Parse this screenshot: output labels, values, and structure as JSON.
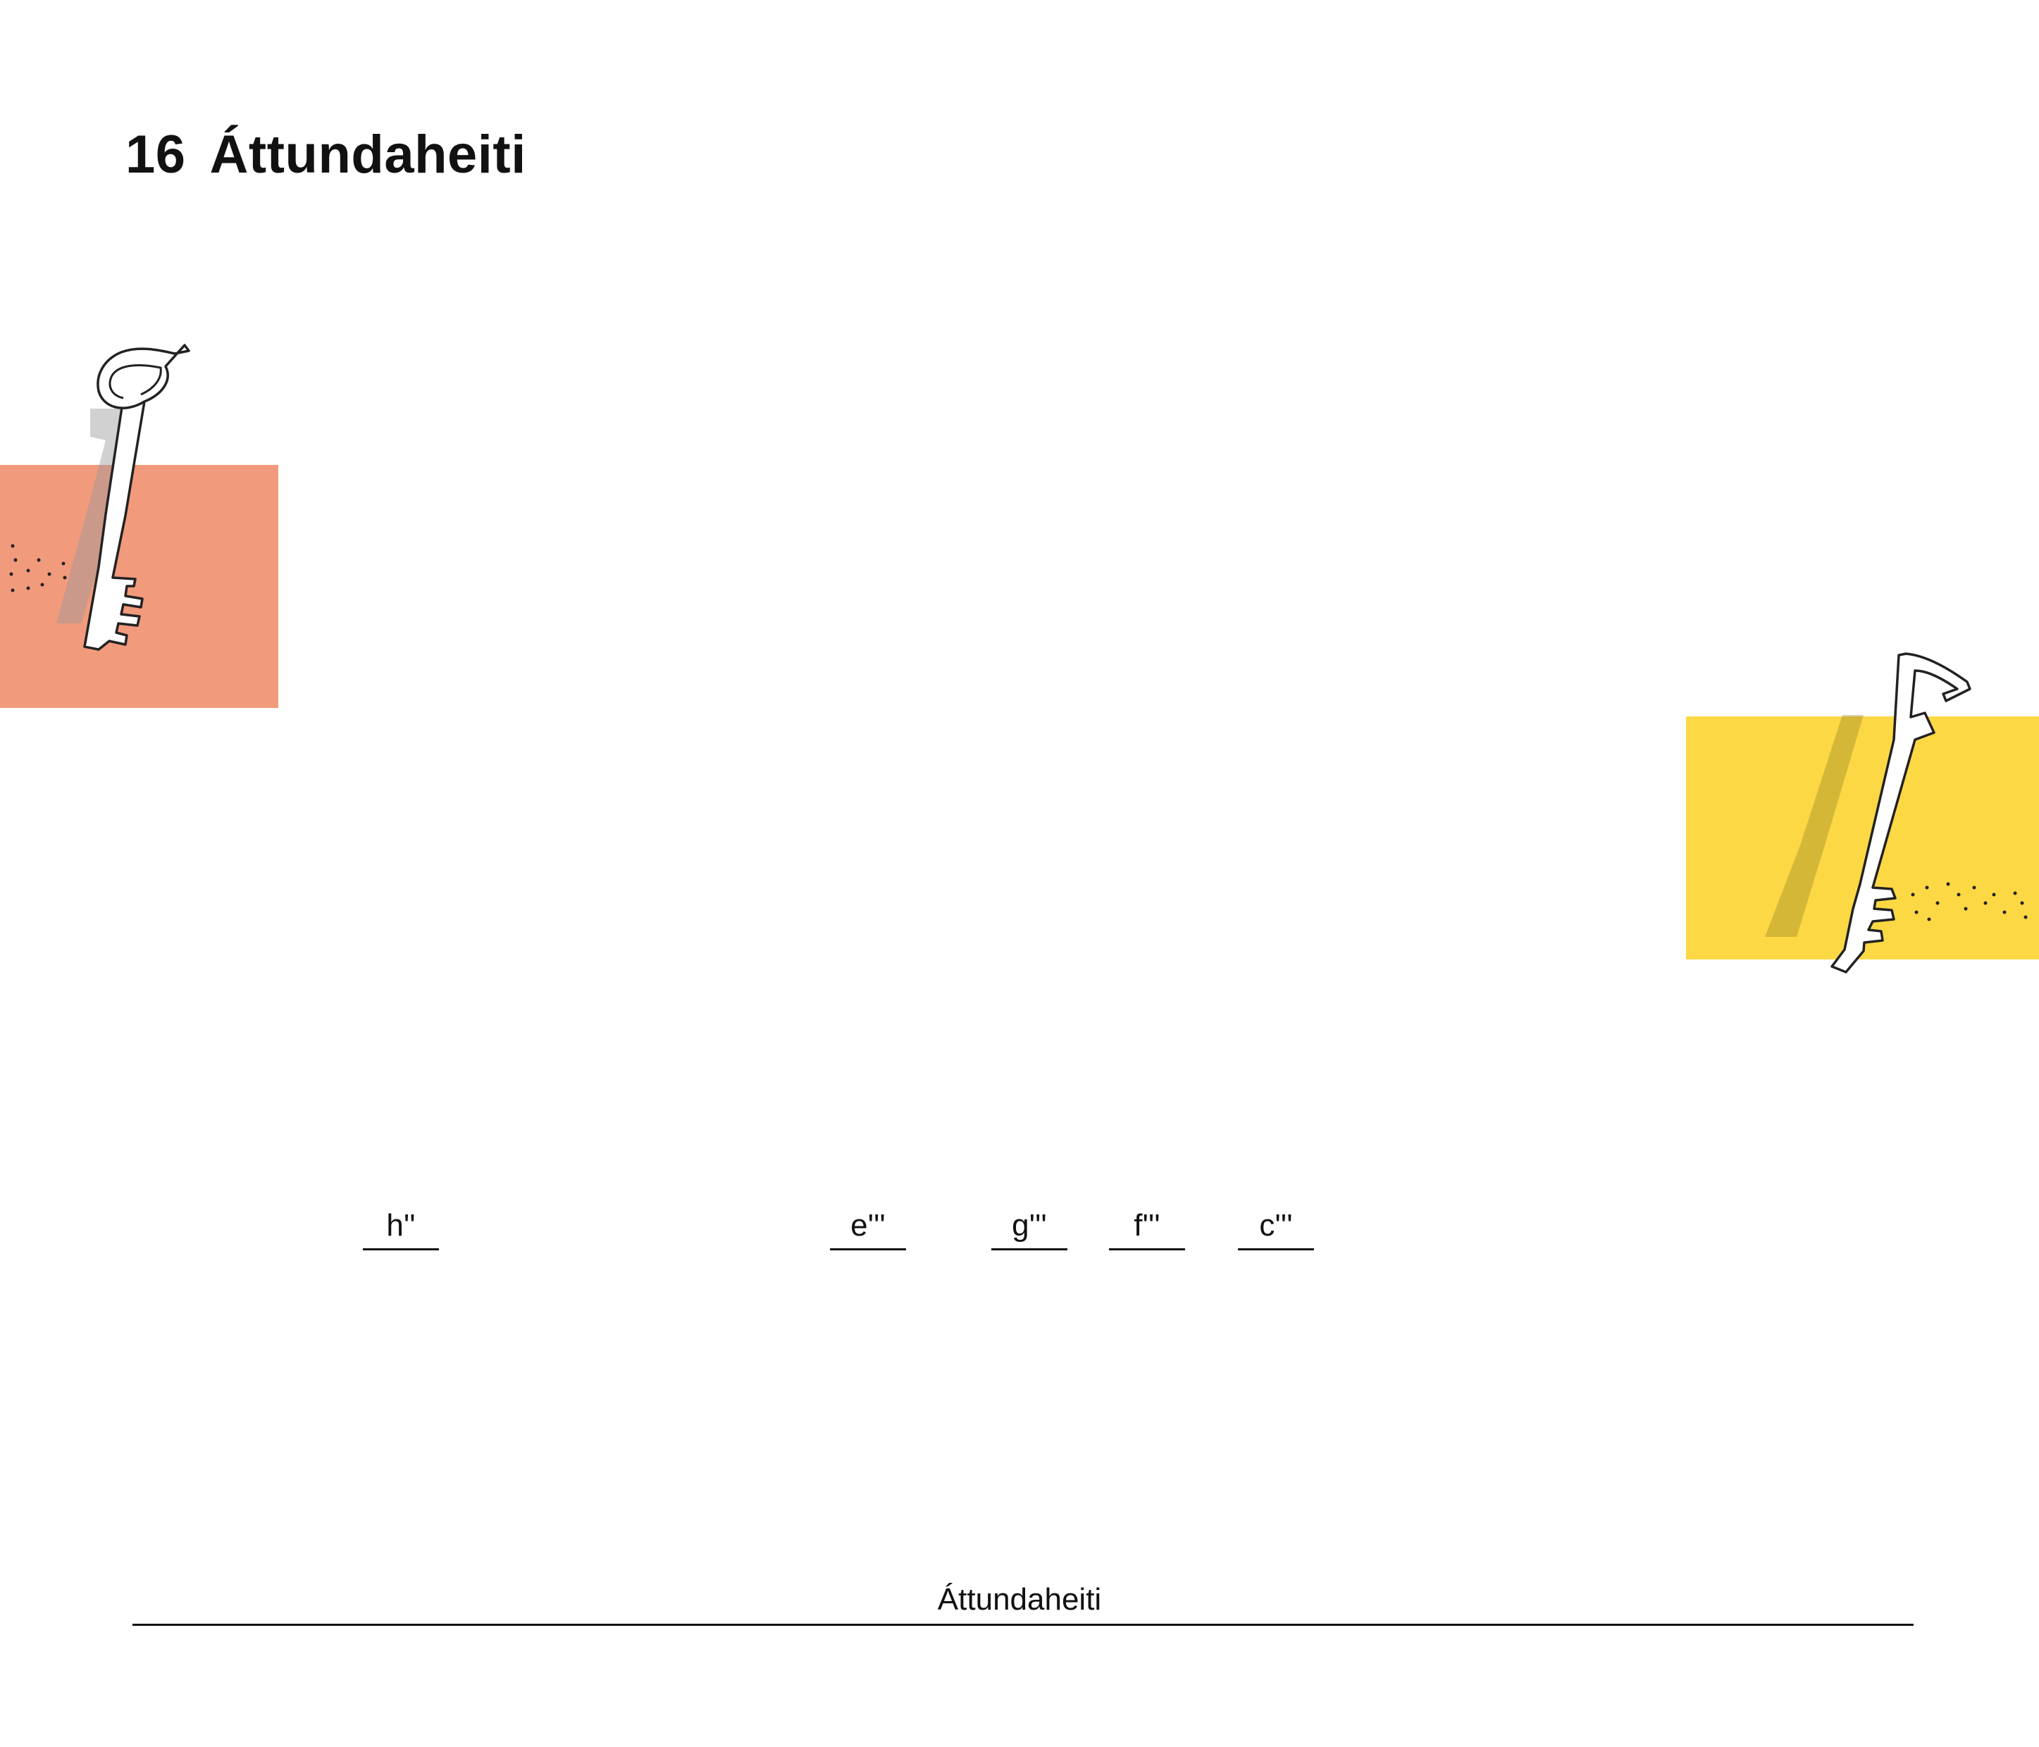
{
  "title": {
    "number": "16",
    "text": "Áttundaheiti"
  },
  "blocks": {
    "left": {
      "color": "#F29A7C",
      "key_icon": "g-clef-key-icon"
    },
    "right": {
      "color": "#FDD845",
      "key_icon": "f-clef-key-icon"
    }
  },
  "answers": [
    {
      "label": "h''"
    },
    {
      "label": "e'''"
    },
    {
      "label": "g'''"
    },
    {
      "label": "f'''"
    },
    {
      "label": "c'''"
    }
  ],
  "footer": {
    "label": "Áttundaheiti"
  }
}
